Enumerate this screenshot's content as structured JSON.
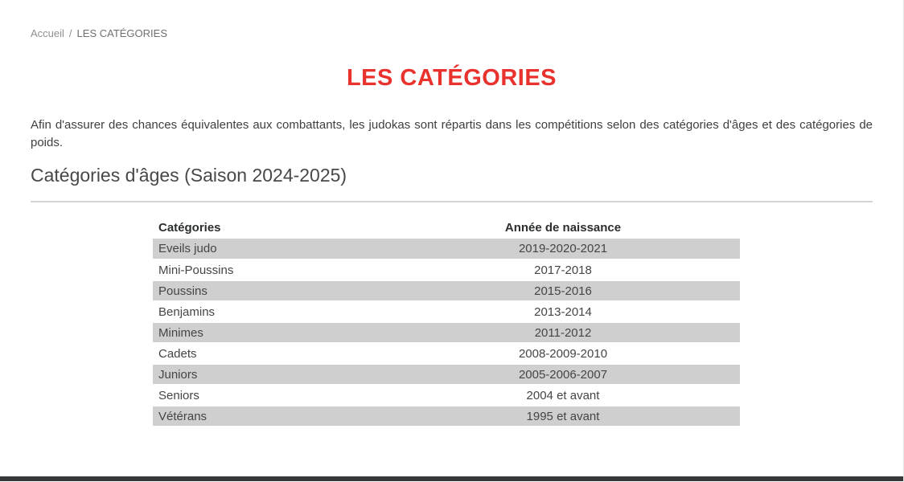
{
  "page": {
    "breadcrumb": {
      "home_label": "Accueil",
      "separator": "/",
      "current_label": "LES CATÉGORIES"
    },
    "title": "LES CATÉGORIES",
    "intro": "Afin d'assurer des chances équivalentes aux combattants, les judokas sont répartis dans les compétitions selon des catégories d'âges et des catégories de poids.",
    "section_heading": "Catégories d'âges (Saison 2024-2025)",
    "table": {
      "headers": [
        "Catégories",
        "Année de naissance"
      ],
      "rows": [
        {
          "category": "Eveils judo",
          "birth_years": "2019-2020-2021"
        },
        {
          "category": "Mini-Poussins",
          "birth_years": "2017-2018"
        },
        {
          "category": "Poussins",
          "birth_years": "2015-2016"
        },
        {
          "category": "Benjamins",
          "birth_years": "2013-2014"
        },
        {
          "category": "Minimes",
          "birth_years": "2011-2012"
        },
        {
          "category": "Cadets",
          "birth_years": "2008-2009-2010"
        },
        {
          "category": "Juniors",
          "birth_years": "2005-2006-2007"
        },
        {
          "category": "Seniors",
          "birth_years": "2004 et avant"
        },
        {
          "category": "Vétérans",
          "birth_years": "1995 et avant"
        }
      ]
    },
    "colors": {
      "title_red": "#e9322d",
      "row_stripe_gray": "#cfcfcf",
      "footer_bar_dark": "#363939",
      "breadcrumb_gray": "#8d9091"
    }
  }
}
